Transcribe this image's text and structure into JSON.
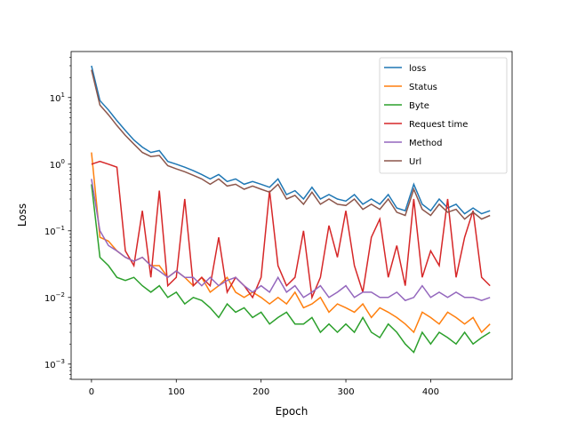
{
  "chart_data": {
    "type": "line",
    "title": "",
    "xlabel": "Epoch",
    "ylabel": "Loss",
    "yscale": "log",
    "xlim": [
      -24,
      496
    ],
    "ylim": [
      0.00059,
      49
    ],
    "grid": false,
    "legend_position": "top-right",
    "x_ticks": [
      0,
      100,
      200,
      300,
      400
    ],
    "x_tick_labels": [
      "0",
      "100",
      "200",
      "300",
      "400"
    ],
    "y_ticks": [
      0.001,
      0.01,
      0.1,
      1,
      10
    ],
    "y_tick_labels": [
      {
        "base": "10",
        "exp": "−3"
      },
      {
        "base": "10",
        "exp": "−2"
      },
      {
        "base": "10",
        "exp": "−1"
      },
      {
        "base": "10",
        "exp": "0"
      },
      {
        "base": "10",
        "exp": "1"
      }
    ],
    "x": [
      0,
      10,
      20,
      30,
      40,
      50,
      60,
      70,
      80,
      90,
      100,
      110,
      120,
      130,
      140,
      150,
      160,
      170,
      180,
      190,
      200,
      210,
      220,
      230,
      240,
      250,
      260,
      270,
      280,
      290,
      300,
      310,
      320,
      330,
      340,
      350,
      360,
      370,
      380,
      390,
      400,
      410,
      420,
      430,
      440,
      450,
      460,
      470
    ],
    "series": [
      {
        "name": "loss",
        "color": "#1f77b4",
        "values": [
          30,
          9,
          6.5,
          4.5,
          3.2,
          2.3,
          1.8,
          1.5,
          1.6,
          1.1,
          1.0,
          0.9,
          0.8,
          0.7,
          0.6,
          0.7,
          0.55,
          0.6,
          0.5,
          0.55,
          0.5,
          0.45,
          0.6,
          0.35,
          0.4,
          0.3,
          0.45,
          0.3,
          0.35,
          0.3,
          0.28,
          0.35,
          0.25,
          0.3,
          0.25,
          0.35,
          0.22,
          0.2,
          0.5,
          0.25,
          0.2,
          0.3,
          0.22,
          0.25,
          0.18,
          0.22,
          0.18,
          0.2
        ]
      },
      {
        "name": "Status",
        "color": "#ff7f0e",
        "values": [
          1.5,
          0.08,
          0.07,
          0.05,
          0.04,
          0.035,
          0.04,
          0.03,
          0.03,
          0.02,
          0.025,
          0.02,
          0.015,
          0.02,
          0.012,
          0.015,
          0.02,
          0.012,
          0.01,
          0.012,
          0.01,
          0.008,
          0.01,
          0.008,
          0.012,
          0.007,
          0.008,
          0.01,
          0.006,
          0.008,
          0.007,
          0.006,
          0.008,
          0.005,
          0.007,
          0.006,
          0.005,
          0.004,
          0.003,
          0.006,
          0.005,
          0.004,
          0.006,
          0.005,
          0.004,
          0.005,
          0.003,
          0.004
        ]
      },
      {
        "name": "Byte",
        "color": "#2ca02c",
        "values": [
          0.5,
          0.04,
          0.03,
          0.02,
          0.018,
          0.02,
          0.015,
          0.012,
          0.015,
          0.01,
          0.012,
          0.008,
          0.01,
          0.009,
          0.007,
          0.005,
          0.008,
          0.006,
          0.007,
          0.005,
          0.006,
          0.004,
          0.005,
          0.006,
          0.004,
          0.004,
          0.005,
          0.003,
          0.004,
          0.003,
          0.004,
          0.003,
          0.005,
          0.003,
          0.0025,
          0.004,
          0.003,
          0.002,
          0.0015,
          0.003,
          0.002,
          0.003,
          0.0025,
          0.002,
          0.003,
          0.002,
          0.0025,
          0.003
        ]
      },
      {
        "name": "Request time",
        "color": "#d62728",
        "values": [
          1.0,
          1.1,
          1.0,
          0.9,
          0.05,
          0.03,
          0.2,
          0.02,
          0.4,
          0.015,
          0.02,
          0.3,
          0.015,
          0.02,
          0.015,
          0.08,
          0.012,
          0.02,
          0.015,
          0.01,
          0.02,
          0.4,
          0.03,
          0.015,
          0.02,
          0.1,
          0.01,
          0.02,
          0.12,
          0.04,
          0.2,
          0.03,
          0.012,
          0.08,
          0.15,
          0.02,
          0.06,
          0.015,
          0.3,
          0.02,
          0.05,
          0.03,
          0.3,
          0.02,
          0.08,
          0.2,
          0.02,
          0.015
        ]
      },
      {
        "name": "Method",
        "color": "#9467bd",
        "values": [
          0.6,
          0.1,
          0.06,
          0.05,
          0.04,
          0.035,
          0.04,
          0.03,
          0.025,
          0.02,
          0.025,
          0.02,
          0.02,
          0.015,
          0.02,
          0.015,
          0.018,
          0.02,
          0.015,
          0.012,
          0.015,
          0.012,
          0.02,
          0.012,
          0.015,
          0.01,
          0.012,
          0.015,
          0.01,
          0.012,
          0.015,
          0.01,
          0.012,
          0.012,
          0.01,
          0.01,
          0.012,
          0.009,
          0.01,
          0.015,
          0.01,
          0.012,
          0.01,
          0.012,
          0.01,
          0.01,
          0.009,
          0.01
        ]
      },
      {
        "name": "Url",
        "color": "#8c564b",
        "values": [
          26,
          7.7,
          5.5,
          3.8,
          2.7,
          2.0,
          1.5,
          1.3,
          1.35,
          0.95,
          0.85,
          0.77,
          0.68,
          0.6,
          0.5,
          0.6,
          0.47,
          0.5,
          0.42,
          0.47,
          0.42,
          0.38,
          0.5,
          0.3,
          0.34,
          0.25,
          0.38,
          0.25,
          0.3,
          0.25,
          0.24,
          0.3,
          0.21,
          0.25,
          0.21,
          0.3,
          0.19,
          0.17,
          0.42,
          0.21,
          0.17,
          0.25,
          0.19,
          0.21,
          0.15,
          0.19,
          0.15,
          0.17
        ]
      }
    ]
  }
}
